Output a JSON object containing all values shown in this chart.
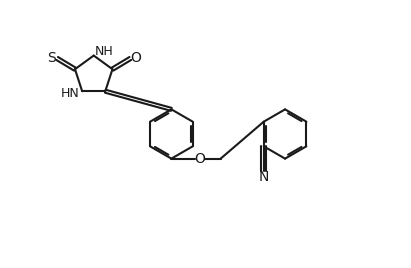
{
  "background_color": "#ffffff",
  "line_color": "#1a1a1a",
  "line_width": 1.5,
  "font_size": 9,
  "figsize": [
    4.11,
    2.68
  ],
  "dpi": 100,
  "xlim": [
    -0.5,
    9.5
  ],
  "ylim": [
    0.0,
    7.0
  ]
}
